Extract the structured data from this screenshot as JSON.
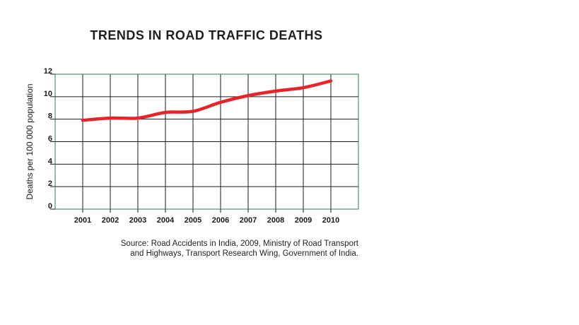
{
  "chart_data": {
    "type": "line",
    "title": "TRENDS IN ROAD TRAFFIC DEATHS",
    "xlabel": "",
    "ylabel": "Deaths per 100 000 population",
    "categories": [
      "2001",
      "2002",
      "2003",
      "2004",
      "2005",
      "2006",
      "2007",
      "2008",
      "2009",
      "2010"
    ],
    "series": [
      {
        "name": "Road traffic deaths",
        "values": [
          7.9,
          8.1,
          8.1,
          8.6,
          8.7,
          9.5,
          10.1,
          10.5,
          10.8,
          11.4
        ]
      }
    ],
    "ylim": [
      0,
      12
    ],
    "yticks": [
      "0",
      "2",
      "4",
      "6",
      "8",
      "10",
      "12"
    ],
    "grid": true,
    "line_color": "#e8242b",
    "grid_color": "#1a1a1a",
    "frame_color": "#2e7d4f"
  },
  "source": {
    "line1": "Source: Road Accidents in India, 2009, Ministry of Road Transport",
    "line2": "and Highways, Transport Research Wing, Government of India."
  }
}
